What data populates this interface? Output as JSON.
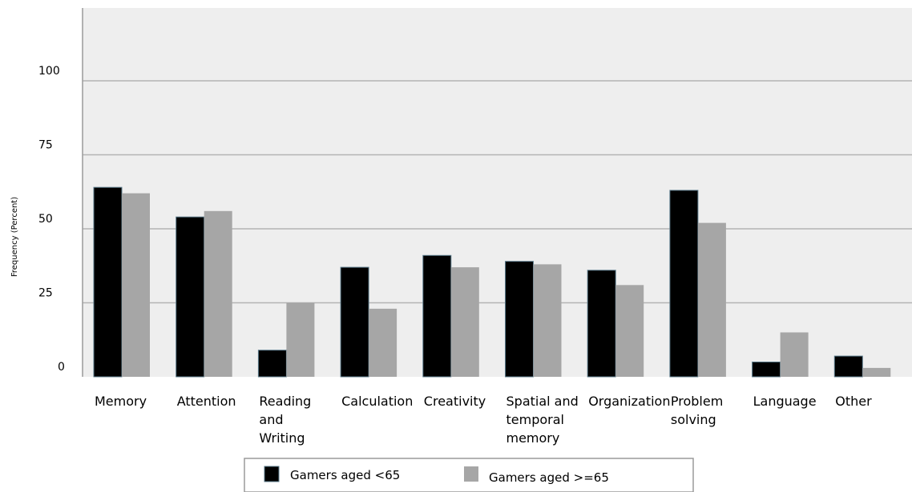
{
  "chart_data": {
    "type": "bar",
    "title": "",
    "xlabel": "",
    "ylabel": "Frequency (Percent)",
    "ylim": [
      0,
      120
    ],
    "yticks": [
      0,
      25,
      50,
      75,
      100
    ],
    "categories": [
      [
        "Memory"
      ],
      [
        "Attention"
      ],
      [
        "Reading",
        "and",
        "Writing"
      ],
      [
        "Calculation"
      ],
      [
        "Creativity"
      ],
      [
        "Spatial and",
        "temporal",
        "memory"
      ],
      [
        "Organization"
      ],
      [
        "Problem",
        "solving"
      ],
      [
        "Language"
      ],
      [
        "Other"
      ]
    ],
    "series": [
      {
        "name": "Gamers aged <65",
        "color": "#000000",
        "values": [
          64,
          54,
          9,
          37,
          41,
          39,
          36,
          63,
          5,
          7
        ]
      },
      {
        "name": "Gamers aged >=65",
        "color": "#a6a6a6",
        "values": [
          62,
          56,
          25,
          23,
          37,
          38,
          31,
          52,
          15,
          3
        ]
      }
    ],
    "grid": true,
    "legend": "bottom",
    "plot_background": "#eeeeee",
    "gridline_color": "#b3b3b3"
  }
}
